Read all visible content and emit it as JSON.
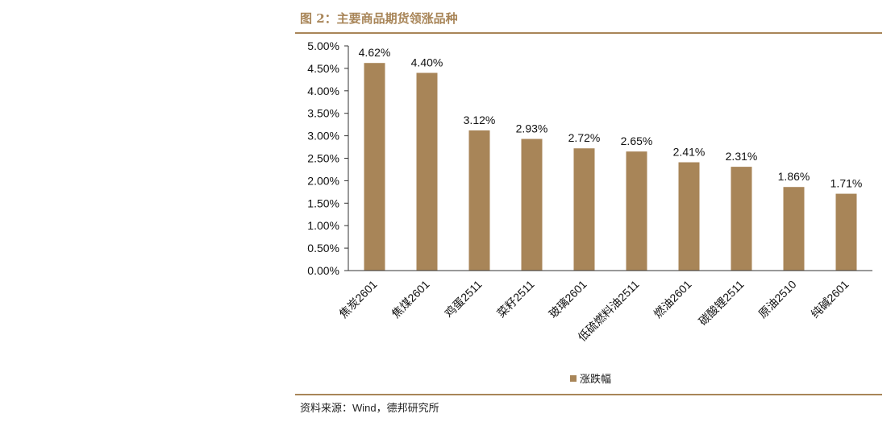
{
  "figure": {
    "title": "图 2：主要商品期货领涨品种",
    "source": "资料来源：Wind，德邦研究所"
  },
  "colors": {
    "accent": "#A88558",
    "bar": "#A88558"
  },
  "chart_data": {
    "type": "bar",
    "title": "",
    "xlabel": "",
    "ylabel": "",
    "categories": [
      "焦炭2601",
      "焦煤2601",
      "鸡蛋2511",
      "菜籽2511",
      "玻璃2601",
      "低硫燃料油2511",
      "燃油2601",
      "碳酸锂2511",
      "原油2510",
      "纯碱2601"
    ],
    "series": [
      {
        "name": "涨跌幅",
        "values": [
          4.62,
          4.4,
          3.12,
          2.93,
          2.72,
          2.65,
          2.41,
          2.31,
          1.86,
          1.71
        ]
      }
    ],
    "data_labels": [
      "4.62%",
      "4.40%",
      "3.12%",
      "2.93%",
      "2.72%",
      "2.65%",
      "2.41%",
      "2.31%",
      "1.86%",
      "1.71%"
    ],
    "ylim": [
      0,
      5
    ],
    "yticks": [
      "0.00%",
      "0.50%",
      "1.00%",
      "1.50%",
      "2.00%",
      "2.50%",
      "3.00%",
      "3.50%",
      "4.00%",
      "4.50%",
      "5.00%"
    ],
    "grid": false,
    "legend": "bottom-center"
  }
}
